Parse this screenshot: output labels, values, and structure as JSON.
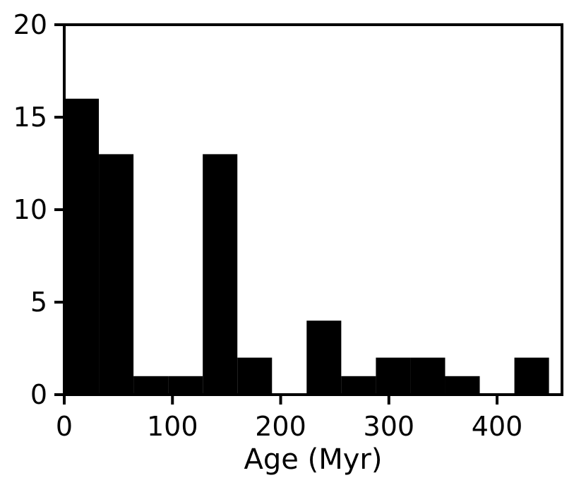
{
  "chart_data": {
    "type": "bar",
    "subtype": "histogram",
    "title": "",
    "xlabel": "Age (Myr)",
    "ylabel": "",
    "xlim": [
      0,
      460
    ],
    "ylim": [
      0,
      20
    ],
    "grid": false,
    "bar_color": "#000000",
    "bin_edges": [
      0,
      32,
      64,
      96,
      128,
      160,
      192,
      224,
      256,
      288,
      320,
      352,
      384,
      416,
      448
    ],
    "values": [
      16,
      13,
      1,
      1,
      13,
      2,
      0,
      4,
      1,
      2,
      2,
      1,
      0,
      2
    ],
    "xticks": [
      0,
      100,
      200,
      300,
      400
    ],
    "xtick_labels": [
      "0",
      "100",
      "200",
      "300",
      "400"
    ],
    "yticks": [
      0,
      5,
      10,
      15,
      20
    ],
    "ytick_labels": [
      "0",
      "5",
      "10",
      "15",
      "20"
    ]
  }
}
